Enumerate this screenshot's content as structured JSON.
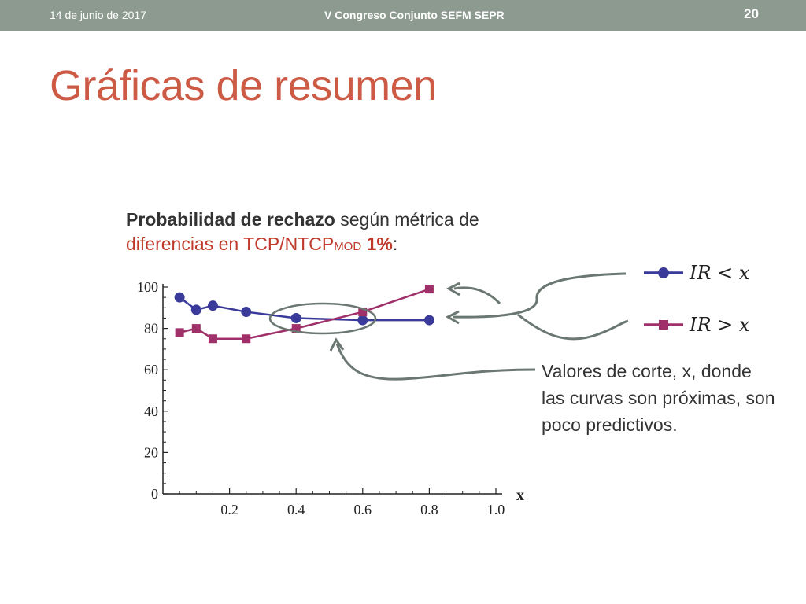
{
  "header": {
    "date": "14 de junio de 2017",
    "conference": "V Congreso Conjunto SEFM SEPR",
    "page_number": "20"
  },
  "slide": {
    "title": "Gráficas de resumen",
    "subtitle_bold": "Probabilidad de rechazo",
    "subtitle_rest": " según métrica de",
    "subtitle_line2_a": "diferencias en TCP/NTCP",
    "subtitle_line2_sub": "MOD",
    "subtitle_line2_pct": " 1%",
    "subtitle_line2_colon": ":",
    "note": "Valores de corte, x, donde las curvas son próximas, son poco predictivos."
  },
  "colors": {
    "title": "#cc5a45",
    "series_ir_lt": "#3a3a9a",
    "series_ir_gt": "#a0306a",
    "header_bg": "#8c9a90",
    "annotation": "#6b7771"
  },
  "chart_data": {
    "type": "line",
    "xlabel": "x",
    "ylabel": "",
    "xlim": [
      0,
      1.0
    ],
    "ylim": [
      0,
      100
    ],
    "x_ticks": [
      "0.2",
      "0.4",
      "0.6",
      "0.8",
      "1.0"
    ],
    "y_ticks": [
      "0",
      "20",
      "40",
      "60",
      "80",
      "100"
    ],
    "legend_position": "right",
    "series": [
      {
        "name": "IR < x",
        "marker": "circle",
        "color": "#3a3a9a",
        "x": [
          0.05,
          0.1,
          0.15,
          0.25,
          0.4,
          0.6,
          0.8
        ],
        "y": [
          95,
          89,
          91,
          88,
          85,
          84,
          84
        ]
      },
      {
        "name": "IR > x",
        "marker": "square",
        "color": "#a0306a",
        "x": [
          0.05,
          0.1,
          0.15,
          0.25,
          0.4,
          0.6,
          0.8
        ],
        "y": [
          78,
          80,
          75,
          75,
          80,
          88,
          99
        ]
      }
    ]
  }
}
